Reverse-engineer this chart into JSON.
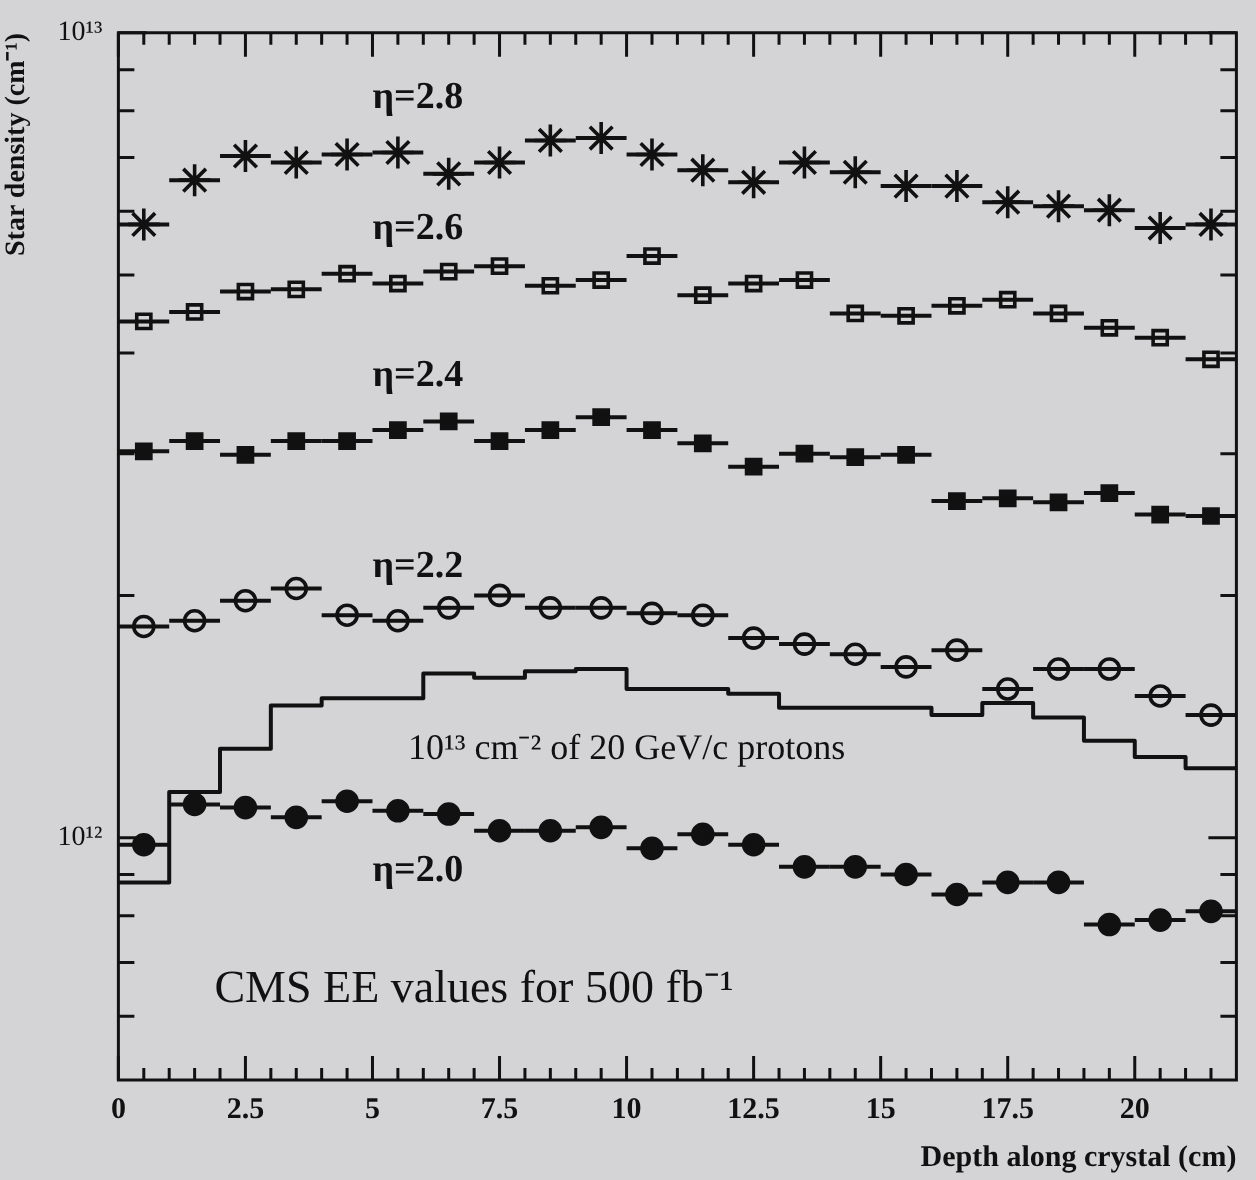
{
  "chart_data": {
    "type": "scatter",
    "xlabel": "Depth along crystal (cm)",
    "ylabel": "Star density (cm⁻¹)",
    "x": [
      0.5,
      1.5,
      2.5,
      3.5,
      4.5,
      5.5,
      6.5,
      7.5,
      8.5,
      9.5,
      10.5,
      11.5,
      12.5,
      13.5,
      14.5,
      15.5,
      16.5,
      17.5,
      18.5,
      19.5,
      20.5,
      21.5
    ],
    "series": [
      {
        "name": "η=2.8",
        "type": "scatter",
        "marker": "cross",
        "color": "#111111",
        "values": [
          5780000000000.0,
          6560000000000.0,
          7030000000000.0,
          6900000000000.0,
          7060000000000.0,
          7100000000000.0,
          6680000000000.0,
          6900000000000.0,
          7350000000000.0,
          7400000000000.0,
          7060000000000.0,
          6750000000000.0,
          6520000000000.0,
          6900000000000.0,
          6710000000000.0,
          6450000000000.0,
          6450000000000.0,
          6160000000000.0,
          6090000000000.0,
          6020000000000.0,
          5720000000000.0,
          5780000000000.0
        ],
        "xerrors": [
          0.5,
          0.5,
          0.5,
          0.5,
          0.5,
          0.5,
          0.5,
          0.5,
          0.5,
          0.5,
          0.5,
          0.5,
          0.5,
          0.5,
          0.5,
          0.5,
          0.5,
          0.5,
          0.5,
          0.5,
          0.5,
          0.5
        ]
      },
      {
        "name": "η=2.6",
        "type": "scatter",
        "marker": "square-open",
        "color": "#111111",
        "values": [
          4380000000000.0,
          4500000000000.0,
          4770000000000.0,
          4800000000000.0,
          5020000000000.0,
          4880000000000.0,
          5050000000000.0,
          5130000000000.0,
          4850000000000.0,
          4930000000000.0,
          5280000000000.0,
          4720000000000.0,
          4880000000000.0,
          4930000000000.0,
          4480000000000.0,
          4450000000000.0,
          4580000000000.0,
          4660000000000.0,
          4480000000000.0,
          4300000000000.0,
          4180000000000.0,
          3930000000000.0
        ],
        "xerrors": [
          0.5,
          0.5,
          0.5,
          0.5,
          0.5,
          0.5,
          0.5,
          0.5,
          0.5,
          0.5,
          0.5,
          0.5,
          0.5,
          0.5,
          0.5,
          0.5,
          0.5,
          0.5,
          0.5,
          0.5,
          0.5,
          0.5
        ]
      },
      {
        "name": "η=2.4",
        "type": "scatter",
        "marker": "square",
        "color": "#111111",
        "values": [
          3020000000000.0,
          3110000000000.0,
          2990000000000.0,
          3110000000000.0,
          3110000000000.0,
          3210000000000.0,
          3290000000000.0,
          3110000000000.0,
          3210000000000.0,
          3330000000000.0,
          3210000000000.0,
          3090000000000.0,
          2890000000000.0,
          3000000000000.0,
          2970000000000.0,
          2990000000000.0,
          2620000000000.0,
          2640000000000.0,
          2610000000000.0,
          2680000000000.0,
          2520000000000.0,
          2510000000000.0
        ],
        "xerrors": [
          0.5,
          0.5,
          0.5,
          0.5,
          0.5,
          0.5,
          0.5,
          0.5,
          0.5,
          0.5,
          0.5,
          0.5,
          0.5,
          0.5,
          0.5,
          0.5,
          0.5,
          0.5,
          0.5,
          0.5,
          0.5,
          0.5
        ]
      },
      {
        "name": "η=2.2",
        "type": "scatter",
        "marker": "circle-open",
        "color": "#111111",
        "values": [
          1830000000000.0,
          1860000000000.0,
          1970000000000.0,
          2040000000000.0,
          1890000000000.0,
          1860000000000.0,
          1930000000000.0,
          2000000000000.0,
          1930000000000.0,
          1930000000000.0,
          1900000000000.0,
          1890000000000.0,
          1770000000000.0,
          1740000000000.0,
          1690000000000.0,
          1630000000000.0,
          1710000000000.0,
          1530000000000.0,
          1620000000000.0,
          1620000000000.0,
          1500000000000.0,
          1420000000000.0
        ],
        "xerrors": [
          0.5,
          0.5,
          0.5,
          0.5,
          0.5,
          0.5,
          0.5,
          0.5,
          0.5,
          0.5,
          0.5,
          0.5,
          0.5,
          0.5,
          0.5,
          0.5,
          0.5,
          0.5,
          0.5,
          0.5,
          0.5,
          0.5
        ]
      },
      {
        "name": "η=2.0",
        "type": "scatter",
        "marker": "circle",
        "color": "#111111",
        "values": [
          980000000000.0,
          1100000000000.0,
          1090000000000.0,
          1060000000000.0,
          1110000000000.0,
          1080000000000.0,
          1070000000000.0,
          1020000000000.0,
          1020000000000.0,
          1030000000000.0,
          970000000000.0,
          1010000000000.0,
          980000000000.0,
          920000000000.0,
          920000000000.0,
          900000000000.0,
          850000000000.0,
          880000000000.0,
          880000000000.0,
          780000000000.0,
          790000000000.0,
          810000000000.0
        ],
        "xerrors": [
          0.5,
          0.5,
          0.5,
          0.5,
          0.5,
          0.5,
          0.5,
          0.5,
          0.5,
          0.5,
          0.5,
          0.5,
          0.5,
          0.5,
          0.5,
          0.5,
          0.5,
          0.5,
          0.5,
          0.5,
          0.5,
          0.5
        ]
      },
      {
        "name": "10¹³ cm⁻² of 20 GeV/c protons",
        "type": "step",
        "color": "#111111",
        "x": [
          0,
          1,
          2,
          3,
          4,
          5,
          6,
          7,
          8,
          9,
          10,
          11,
          12,
          13,
          14,
          15,
          16,
          17,
          18,
          19,
          20,
          21,
          22
        ],
        "values": [
          880000000000.0,
          1140000000000.0,
          1290000000000.0,
          1460000000000.0,
          1490000000000.0,
          1490000000000.0,
          1600000000000.0,
          1580000000000.0,
          1610000000000.0,
          1620000000000.0,
          1530000000000.0,
          1530000000000.0,
          1510000000000.0,
          1450000000000.0,
          1450000000000.0,
          1450000000000.0,
          1420000000000.0,
          1470000000000.0,
          1410000000000.0,
          1320000000000.0,
          1260000000000.0,
          1220000000000.0,
          1220000000000.0
        ]
      }
    ],
    "xlim": [
      0,
      22
    ],
    "xticks": [
      0,
      {
        "value": 0.5,
        "label": null
      },
      {
        "value": 1,
        "label": null
      },
      {
        "value": 1.5,
        "label": null
      },
      {
        "value": 2,
        "label": null
      },
      2.5,
      {
        "value": 3,
        "label": null
      },
      {
        "value": 3.5,
        "label": null
      },
      {
        "value": 4,
        "label": null
      },
      {
        "value": 4.5,
        "label": null
      },
      5,
      {
        "value": 5.5,
        "label": null
      },
      {
        "value": 6,
        "label": null
      },
      {
        "value": 6.5,
        "label": null
      },
      {
        "value": 7,
        "label": null
      },
      7.5,
      {
        "value": 8,
        "label": null
      },
      {
        "value": 8.5,
        "label": null
      },
      {
        "value": 9,
        "label": null
      },
      {
        "value": 9.5,
        "label": null
      },
      10,
      {
        "value": 10.5,
        "label": null
      },
      {
        "value": 11,
        "label": null
      },
      {
        "value": 11.5,
        "label": null
      },
      {
        "value": 12,
        "label": null
      },
      12.5,
      {
        "value": 13,
        "label": null
      },
      {
        "value": 13.5,
        "label": null
      },
      {
        "value": 14,
        "label": null
      },
      {
        "value": 14.5,
        "label": null
      },
      15,
      {
        "value": 15.5,
        "label": null
      },
      {
        "value": 16,
        "label": null
      },
      {
        "value": 16.5,
        "label": null
      },
      {
        "value": 17,
        "label": null
      },
      17.5,
      {
        "value": 18,
        "label": null
      },
      {
        "value": 18.5,
        "label": null
      },
      {
        "value": 19,
        "label": null
      },
      {
        "value": 19.5,
        "label": null
      },
      20,
      {
        "value": 20.5,
        "label": null
      },
      {
        "value": 21,
        "label": null
      },
      {
        "value": 21.5,
        "label": null
      }
    ],
    "ylim": [
      500000000000.0,
      10000000000000.0
    ],
    "yticks": [
      {
        "value": 600000000000.0,
        "label": null
      },
      {
        "value": 700000000000.0,
        "label": null
      },
      {
        "value": 800000000000.0,
        "label": null
      },
      {
        "value": 900000000000.0,
        "label": null
      },
      {
        "value": 1000000000000.0,
        "label": "10¹²"
      },
      {
        "value": 2000000000000.0,
        "label": null
      },
      {
        "value": 3000000000000.0,
        "label": null
      },
      {
        "value": 4000000000000.0,
        "label": null
      },
      {
        "value": 5000000000000.0,
        "label": null
      },
      {
        "value": 6000000000000.0,
        "label": null
      },
      {
        "value": 7000000000000.0,
        "label": null
      },
      {
        "value": 8000000000000.0,
        "label": null
      },
      {
        "value": 9000000000000.0,
        "label": null
      },
      {
        "value": 10000000000000.0,
        "label": "10¹³"
      }
    ],
    "log": "y",
    "annotations": [
      "CMS EE values for 500 fb⁻¹"
    ]
  }
}
